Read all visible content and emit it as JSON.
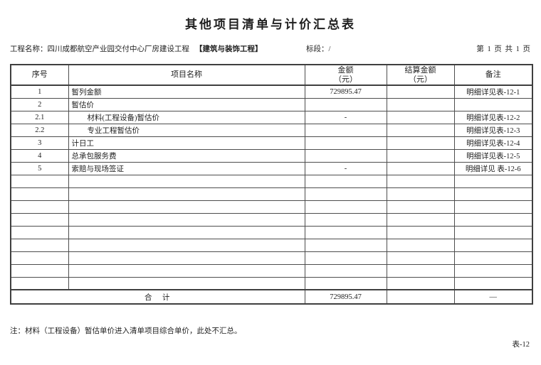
{
  "page": {
    "title": "其他项目清单与计价汇总表",
    "footer_note": "注：材料（工程设备）暂估单价进入清单项目综合单价，此处不汇总。",
    "form_code": "表-12"
  },
  "meta": {
    "project_label": "工程名称：四川成都航空产业园交付中心厂房建设工程",
    "project_tag": "【建筑与装饰工程】",
    "section_label": "标段：/",
    "page_info": "第 1 页 共 1 页"
  },
  "table": {
    "columns": [
      {
        "label": "序号",
        "sub": ""
      },
      {
        "label": "项目名称",
        "sub": ""
      },
      {
        "label": "金额",
        "sub": "（元）"
      },
      {
        "label": "结算金额",
        "sub": "（元）"
      },
      {
        "label": "备注",
        "sub": ""
      }
    ],
    "rows": [
      {
        "seq": "1",
        "name": "暂列金额",
        "indent": false,
        "amount": "729895.47",
        "settlement": "",
        "note": "明细详见表-12-1"
      },
      {
        "seq": "2",
        "name": "暂估价",
        "indent": false,
        "amount": "",
        "settlement": "",
        "note": ""
      },
      {
        "seq": "2.1",
        "name": "材料(工程设备)暂估价",
        "indent": true,
        "amount": "-",
        "settlement": "",
        "note": "明细详见表-12-2"
      },
      {
        "seq": "2.2",
        "name": "专业工程暂估价",
        "indent": true,
        "amount": "",
        "settlement": "",
        "note": "明细详见表-12-3"
      },
      {
        "seq": "3",
        "name": "计日工",
        "indent": false,
        "amount": "",
        "settlement": "",
        "note": "明细详见表-12-4"
      },
      {
        "seq": "4",
        "name": "总承包服务费",
        "indent": false,
        "amount": "",
        "settlement": "",
        "note": "明细详见表-12-5"
      },
      {
        "seq": "5",
        "name": "索赔与现场签证",
        "indent": false,
        "amount": "-",
        "settlement": "",
        "note": "明细详见 表-12-6"
      },
      {
        "seq": "",
        "name": "",
        "indent": false,
        "amount": "",
        "settlement": "",
        "note": ""
      },
      {
        "seq": "",
        "name": "",
        "indent": false,
        "amount": "",
        "settlement": "",
        "note": ""
      },
      {
        "seq": "",
        "name": "",
        "indent": false,
        "amount": "",
        "settlement": "",
        "note": ""
      },
      {
        "seq": "",
        "name": "",
        "indent": false,
        "amount": "",
        "settlement": "",
        "note": ""
      },
      {
        "seq": "",
        "name": "",
        "indent": false,
        "amount": "",
        "settlement": "",
        "note": ""
      },
      {
        "seq": "",
        "name": "",
        "indent": false,
        "amount": "",
        "settlement": "",
        "note": ""
      },
      {
        "seq": "",
        "name": "",
        "indent": false,
        "amount": "",
        "settlement": "",
        "note": ""
      },
      {
        "seq": "",
        "name": "",
        "indent": false,
        "amount": "",
        "settlement": "",
        "note": ""
      },
      {
        "seq": "",
        "name": "",
        "indent": false,
        "amount": "",
        "settlement": "",
        "note": ""
      }
    ],
    "total_row": {
      "label": "合　计",
      "amount": "729895.47",
      "settlement": "",
      "note": "—"
    }
  }
}
